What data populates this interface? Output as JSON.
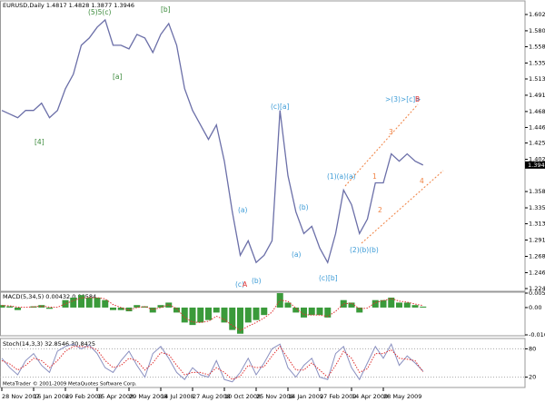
{
  "chart_data": [
    {
      "type": "line",
      "title": "EURUSD,Daily 1.4817 1.4828 1.3877 1.3946",
      "color": "#6b6fa8",
      "categories": [
        "28 Nov 2007",
        null,
        null,
        null,
        "16 Jan 2008",
        null,
        null,
        null,
        "29 Feb 2008",
        null,
        null,
        null,
        "15 Apr 2008",
        null,
        null,
        null,
        "29 May 2008",
        null,
        null,
        null,
        "14 Jul 2008",
        null,
        null,
        null,
        "27 Aug 2008",
        null,
        null,
        null,
        "10 Oct 2008",
        null,
        null,
        null,
        "25 Nov 2008",
        null,
        null,
        null,
        "14 Jan 2009",
        null,
        null,
        null,
        "27 Feb 2009",
        null,
        null,
        null,
        "14 Apr 2009",
        null,
        null,
        null,
        "28 May 2009",
        null,
        null,
        null,
        null,
        null
      ],
      "values": [
        1.47,
        1.465,
        1.46,
        1.47,
        1.47,
        1.48,
        1.46,
        1.47,
        1.5,
        1.52,
        1.56,
        1.57,
        1.585,
        1.595,
        1.56,
        1.56,
        1.555,
        1.575,
        1.57,
        1.55,
        1.575,
        1.59,
        1.56,
        1.5,
        1.47,
        1.45,
        1.43,
        1.45,
        1.4,
        1.33,
        1.27,
        1.29,
        1.26,
        1.27,
        1.29,
        1.47,
        1.38,
        1.33,
        1.3,
        1.31,
        1.28,
        1.26,
        1.3,
        1.36,
        1.34,
        1.3,
        1.32,
        1.37,
        1.37,
        1.41,
        1.4,
        1.41,
        1.4,
        1.3946
      ],
      "current_price": 1.3946,
      "ylim": [
        1.2215,
        1.62
      ],
      "yticks": [
        1.6025,
        {
          "value": 1.58,
          "label": "1.5800"
        },
        {
          "value": 1.558,
          "label": "1.5580"
        },
        1.5355,
        1.5135,
        {
          "value": 1.491,
          "label": "1.4910"
        },
        1.4685,
        1.4465,
        {
          "value": 1.425,
          "label": "1.4250"
        },
        1.4025,
        {
          "value": 1.358,
          "label": "1.3580"
        },
        1.3355,
        1.3135,
        {
          "value": 1.291,
          "label": "1.2910"
        },
        1.2685,
        {
          "value": 1.246,
          "label": "1.2460"
        },
        {
          "value": 1.224,
          "label": "1.2240"
        }
      ],
      "annotations": [
        {
          "text": "(5)5(c)",
          "color": "#3a8a3a"
        },
        {
          "text": "[b]",
          "color": "#3a8a3a"
        },
        {
          "text": "[a]",
          "color": "#3a8a3a"
        },
        {
          "text": "[4]",
          "color": "#3a8a3a"
        },
        {
          "text": "(c)[a]",
          "color": "#3a9ad6"
        },
        {
          "text": "(a)",
          "color": "#3a9ad6"
        },
        {
          "text": "(b)",
          "color": "#3a9ad6"
        },
        {
          "text": "(a)",
          "color": "#3a9ad6"
        },
        {
          "text": "(c)[b]",
          "color": "#3a9ad6"
        },
        {
          "text": "(c)",
          "color": "#3a9ad6"
        },
        {
          "text": "A",
          "color": "#e03030"
        },
        {
          "text": "(b)",
          "color": "#3a9ad6"
        },
        {
          "text": "(1)(a)(a)",
          "color": "#3a9ad6"
        },
        {
          "text": "(2)(b)(b)",
          "color": "#3a9ad6"
        },
        {
          "text": ">(3)>[c]>",
          "color": "#3a9ad6"
        },
        {
          "text": "B",
          "color": "#e03030"
        },
        {
          "text": "1",
          "color": "#f08040"
        },
        {
          "text": "2",
          "color": "#f08040"
        },
        {
          "text": "3",
          "color": "#f08040"
        },
        {
          "text": "4",
          "color": "#f08040"
        }
      ]
    },
    {
      "type": "bar",
      "title": "MACD(5,34,5) 0.00432 0.00584",
      "series": [
        {
          "type": "bar",
          "color": "#3a9a3a",
          "values": [
            0.001,
            0.0005,
            -0.001,
            0,
            0.0005,
            0.001,
            -0.0005,
            0,
            0.003,
            0.004,
            0.005,
            0.004,
            0.004,
            0.003,
            -0.001,
            -0.001,
            -0.0015,
            0.001,
            0.0005,
            -0.002,
            0.001,
            0.002,
            -0.002,
            -0.006,
            -0.007,
            -0.006,
            -0.005,
            -0.002,
            -0.006,
            -0.009,
            -0.0105,
            -0.006,
            -0.005,
            -0.003,
            0,
            0.0058,
            0.002,
            -0.002,
            -0.004,
            -0.003,
            -0.003,
            -0.004,
            0,
            0.003,
            0.002,
            -0.002,
            0,
            0.003,
            0.003,
            0.004,
            0.002,
            0.002,
            0.001,
            0.0004
          ]
        },
        {
          "type": "line",
          "color": "#e03030",
          "values": [
            0.0008,
            0.0007,
            0.0002,
            0.0001,
            0.0003,
            0.0006,
            0.0002,
            0.0001,
            0.0015,
            0.0028,
            0.0039,
            0.004,
            0.004,
            0.0035,
            0.0012,
            0.0,
            -0.001,
            0.0,
            0.0004,
            -0.0008,
            0.0,
            0.0012,
            -0.0004,
            -0.004,
            -0.0058,
            -0.006,
            -0.0055,
            -0.0035,
            -0.0048,
            -0.0072,
            -0.0092,
            -0.0075,
            -0.006,
            -0.0042,
            -0.0018,
            0.003,
            0.0025,
            -0.0002,
            -0.0028,
            -0.003,
            -0.003,
            -0.0036,
            -0.0015,
            0.0015,
            0.0018,
            -0.0005,
            -0.0002,
            0.002,
            0.0028,
            0.0036,
            0.0026,
            0.0022,
            0.0014,
            0.0008
          ]
        }
      ],
      "ylim": [
        -0.01096,
        0.00581
      ],
      "yticks": [
        0.00581,
        {
          "value": 0,
          "label": "0.00"
        },
        -0.01096
      ]
    },
    {
      "type": "line",
      "title": "Stoch(14,3,3) 32.8546 30.8425",
      "series": [
        {
          "type": "line",
          "color": "#8a90c0",
          "values": [
            60,
            40,
            25,
            55,
            70,
            45,
            30,
            75,
            85,
            90,
            80,
            88,
            70,
            40,
            30,
            55,
            75,
            45,
            20,
            70,
            85,
            60,
            30,
            15,
            40,
            25,
            20,
            55,
            15,
            10,
            30,
            60,
            25,
            50,
            80,
            90,
            40,
            20,
            45,
            60,
            20,
            15,
            70,
            85,
            40,
            15,
            50,
            85,
            60,
            90,
            45,
            65,
            50,
            33
          ]
        },
        {
          "type": "line",
          "color": "#e03030",
          "values": [
            55,
            48,
            35,
            45,
            60,
            55,
            40,
            55,
            75,
            85,
            85,
            84,
            78,
            55,
            40,
            45,
            60,
            55,
            35,
            50,
            72,
            68,
            45,
            25,
            30,
            30,
            25,
            40,
            30,
            15,
            22,
            45,
            40,
            42,
            65,
            85,
            60,
            35,
            35,
            50,
            35,
            20,
            45,
            75,
            60,
            30,
            38,
            70,
            70,
            78,
            60,
            58,
            55,
            31
          ]
        }
      ],
      "ylim": [
        0,
        100
      ],
      "yticks": [
        80,
        20
      ]
    }
  ],
  "footer": {
    "brand": "MetaTrader",
    "copyright": "© 2001-2009 MetaQuotes Software Corp."
  }
}
